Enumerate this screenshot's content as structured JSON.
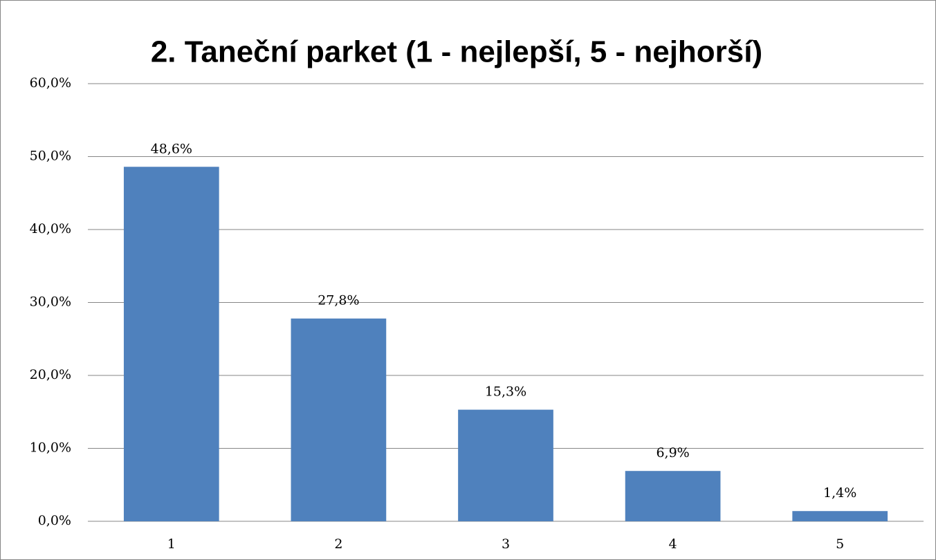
{
  "chart_data": {
    "type": "bar",
    "title": "2. Taneční parket (1 - nejlepší, 5 - nejhorší)",
    "categories": [
      "1",
      "2",
      "3",
      "4",
      "5"
    ],
    "values": [
      48.6,
      27.8,
      15.3,
      6.9,
      1.4
    ],
    "value_labels": [
      "48,6%",
      "27,8%",
      "15,3%",
      "6,9%",
      "1,4%"
    ],
    "color": "#4f81bd",
    "ylim": [
      0,
      60
    ],
    "yticks": [
      {
        "value": 0,
        "label": "0,0%"
      },
      {
        "value": 10,
        "label": "10,0%"
      },
      {
        "value": 20,
        "label": "20,0%"
      },
      {
        "value": 30,
        "label": "30,0%"
      },
      {
        "value": 40,
        "label": "40,0%"
      },
      {
        "value": 50,
        "label": "50,0%"
      },
      {
        "value": 60,
        "label": "60,0%"
      }
    ],
    "grid": true
  }
}
